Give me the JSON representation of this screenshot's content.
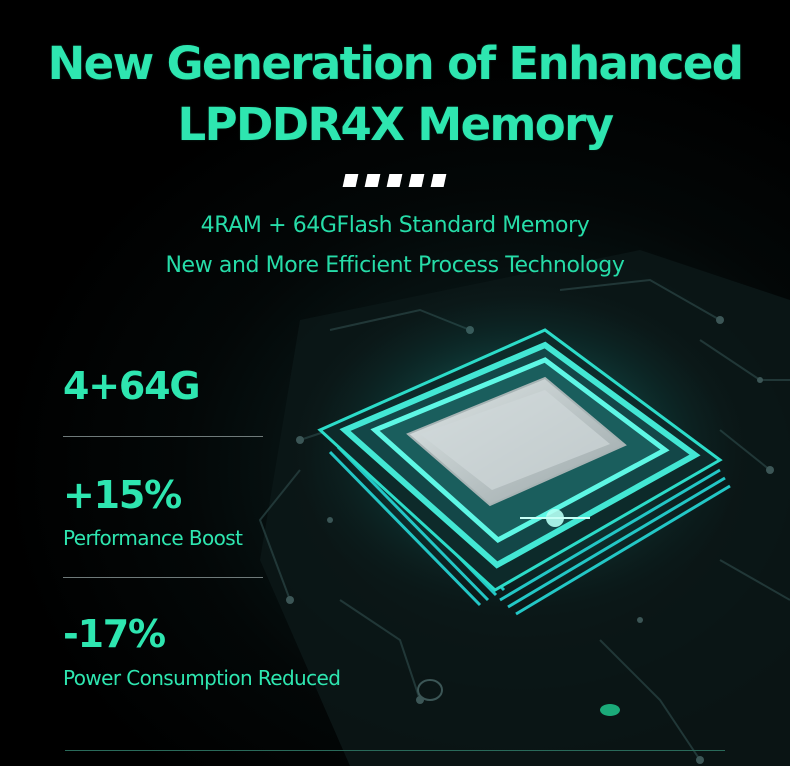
{
  "header": {
    "title_line1": "New Generation of Enhanced",
    "title_line2": "LPDDR4X Memory",
    "subtitle_line1": "4RAM + 64GFlash Standard Memory",
    "subtitle_line2": "New and More Efficient Process Technology"
  },
  "stats": [
    {
      "value": "4+64G",
      "label": ""
    },
    {
      "value": "+15%",
      "label": "Performance Boost"
    },
    {
      "value": "-17%",
      "label": "Power Consumption Reduced"
    }
  ],
  "colors": {
    "accent": "#2ee6b0",
    "chip_glow": "#31f0d8",
    "background": "#000000"
  }
}
